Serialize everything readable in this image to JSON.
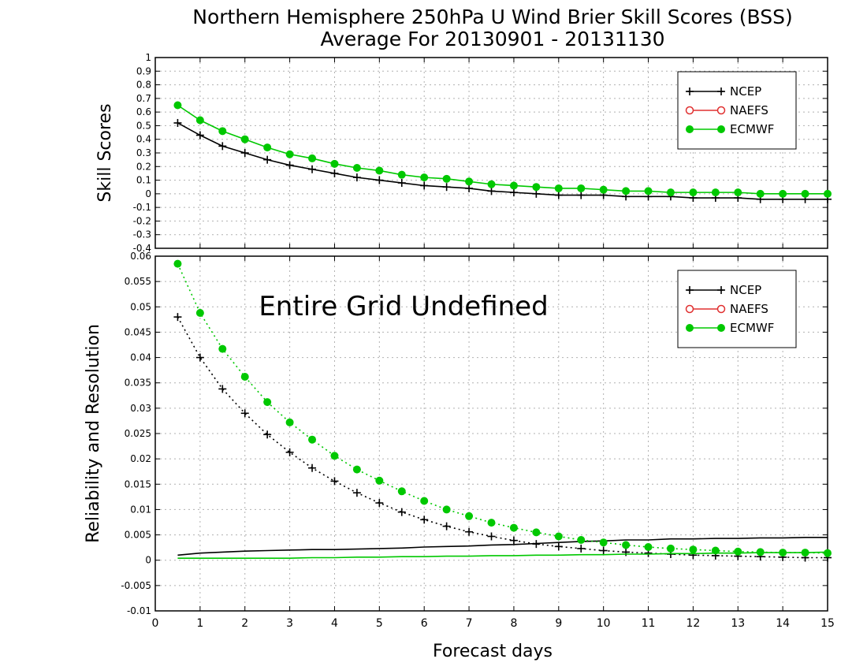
{
  "title_line1": "Northern Hemisphere 250hPa U Wind Brier Skill Scores (BSS)",
  "title_line2": "Average For 20130901 - 20131130",
  "colors": {
    "NCEP": "#000000",
    "NAEFS": "#e03030",
    "ECMWF": "#00c800",
    "grid": "#b0b0b0"
  },
  "chart_data": [
    {
      "type": "line",
      "ylabel": "Skill Scores",
      "xlabel": "",
      "xlim": [
        0,
        15
      ],
      "ylim": [
        -0.4,
        1
      ],
      "y_ticks": [
        "-0.4",
        "-0.3",
        "-0.2",
        "-0.1",
        "0",
        "0.1",
        "0.2",
        "0.3",
        "0.4",
        "0.5",
        "0.6",
        "0.7",
        "0.8",
        "0.9",
        "1"
      ],
      "grid": true,
      "legend": {
        "placement": "top-right",
        "entries": [
          "NCEP",
          "NAEFS",
          "ECMWF"
        ]
      },
      "x": [
        0.5,
        1,
        1.5,
        2,
        2.5,
        3,
        3.5,
        4,
        4.5,
        5,
        5.5,
        6,
        6.5,
        7,
        7.5,
        8,
        8.5,
        9,
        9.5,
        10,
        10.5,
        11,
        11.5,
        12,
        12.5,
        13,
        13.5,
        14,
        14.5,
        15
      ],
      "series": [
        {
          "name": "NCEP",
          "style": "solid",
          "marker": "plus",
          "values": [
            0.52,
            0.43,
            0.35,
            0.3,
            0.25,
            0.21,
            0.18,
            0.15,
            0.12,
            0.1,
            0.08,
            0.06,
            0.05,
            0.04,
            0.02,
            0.01,
            0.0,
            -0.01,
            -0.01,
            -0.01,
            -0.02,
            -0.02,
            -0.02,
            -0.03,
            -0.03,
            -0.03,
            -0.04,
            -0.04,
            -0.04,
            -0.04
          ]
        },
        {
          "name": "ECMWF",
          "style": "solid",
          "marker": "dot",
          "values": [
            0.65,
            0.54,
            0.46,
            0.4,
            0.34,
            0.29,
            0.26,
            0.22,
            0.19,
            0.17,
            0.14,
            0.12,
            0.11,
            0.09,
            0.07,
            0.06,
            0.05,
            0.04,
            0.04,
            0.03,
            0.02,
            0.02,
            0.01,
            0.01,
            0.01,
            0.01,
            0.0,
            0.0,
            0.0,
            0.0
          ]
        }
      ]
    },
    {
      "type": "line",
      "ylabel": "Reliability and Resolution",
      "xlabel": "Forecast days",
      "xlim": [
        0,
        15
      ],
      "ylim": [
        -0.01,
        0.06
      ],
      "y_ticks": [
        "-0.01",
        "-0.005",
        "0",
        "0.005",
        "0.01",
        "0.015",
        "0.02",
        "0.025",
        "0.03",
        "0.035",
        "0.04",
        "0.045",
        "0.05",
        "0.055",
        "0.06"
      ],
      "x_ticks": [
        "0",
        "1",
        "2",
        "3",
        "4",
        "5",
        "6",
        "7",
        "8",
        "9",
        "10",
        "11",
        "12",
        "13",
        "14",
        "15"
      ],
      "grid": true,
      "annotation": "Entire Grid Undefined",
      "legend": {
        "placement": "top-right",
        "entries": [
          "NCEP",
          "NAEFS",
          "ECMWF"
        ]
      },
      "x": [
        0.5,
        1,
        1.5,
        2,
        2.5,
        3,
        3.5,
        4,
        4.5,
        5,
        5.5,
        6,
        6.5,
        7,
        7.5,
        8,
        8.5,
        9,
        9.5,
        10,
        10.5,
        11,
        11.5,
        12,
        12.5,
        13,
        13.5,
        14,
        14.5,
        15
      ],
      "series": [
        {
          "name": "NCEP",
          "style": "solid",
          "marker": "none",
          "values": [
            0.001,
            0.0014,
            0.0016,
            0.0018,
            0.0019,
            0.002,
            0.0021,
            0.0021,
            0.0022,
            0.0023,
            0.0024,
            0.0026,
            0.0027,
            0.0028,
            0.003,
            0.0031,
            0.0033,
            0.0035,
            0.0037,
            0.0038,
            0.004,
            0.004,
            0.0042,
            0.0042,
            0.0043,
            0.0043,
            0.0044,
            0.0044,
            0.0045,
            0.0045
          ]
        },
        {
          "name": "NCEP",
          "style": "dotted",
          "marker": "plus",
          "values": [
            0.048,
            0.04,
            0.0338,
            0.029,
            0.0248,
            0.0213,
            0.0182,
            0.0156,
            0.0133,
            0.0113,
            0.0095,
            0.008,
            0.0067,
            0.0056,
            0.0047,
            0.0039,
            0.0032,
            0.0027,
            0.0023,
            0.0019,
            0.0016,
            0.0014,
            0.0012,
            0.001,
            0.0009,
            0.0008,
            0.0007,
            0.0006,
            0.0005,
            0.0005
          ]
        },
        {
          "name": "ECMWF",
          "style": "solid",
          "marker": "none",
          "values": [
            0.0004,
            0.0004,
            0.0004,
            0.0004,
            0.0004,
            0.0004,
            0.0005,
            0.0005,
            0.0006,
            0.0006,
            0.0007,
            0.0007,
            0.0008,
            0.0008,
            0.0009,
            0.0009,
            0.001,
            0.001,
            0.0011,
            0.0011,
            0.0012,
            0.0012,
            0.0013,
            0.0013,
            0.0014,
            0.0014,
            0.0015,
            0.0015,
            0.0015,
            0.0016
          ]
        },
        {
          "name": "ECMWF",
          "style": "dotted",
          "marker": "dot",
          "values": [
            0.0585,
            0.0488,
            0.0417,
            0.0362,
            0.0312,
            0.0272,
            0.0238,
            0.0206,
            0.0179,
            0.0157,
            0.0136,
            0.0117,
            0.01,
            0.0087,
            0.0074,
            0.0064,
            0.0055,
            0.0047,
            0.004,
            0.0035,
            0.003,
            0.0026,
            0.0023,
            0.0021,
            0.0019,
            0.0017,
            0.0016,
            0.0015,
            0.0015,
            0.0014
          ]
        }
      ]
    }
  ]
}
